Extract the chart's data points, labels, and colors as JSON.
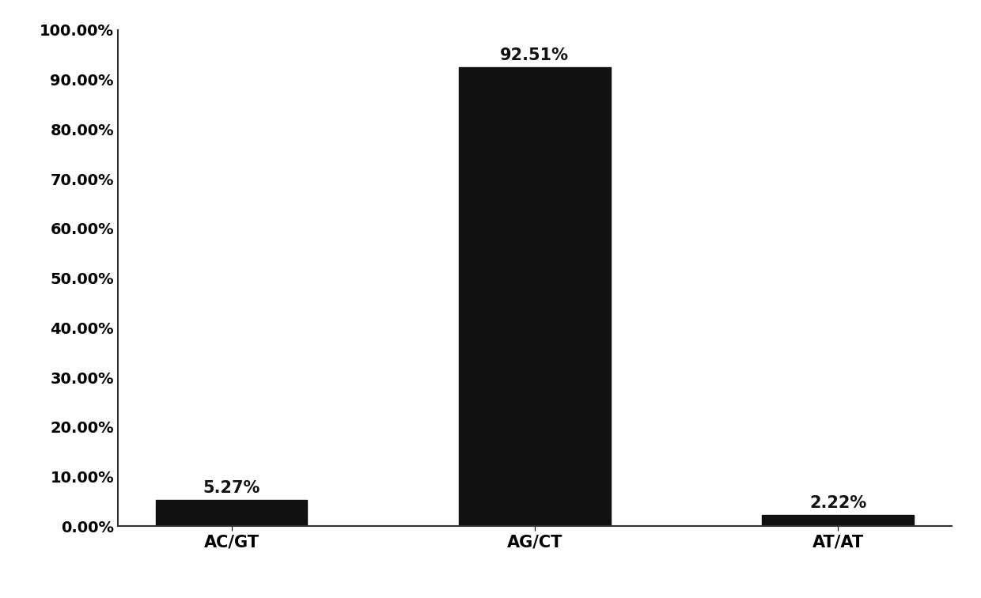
{
  "categories": [
    "AC/GT",
    "AG/CT",
    "AT/AT"
  ],
  "values": [
    5.27,
    92.51,
    2.22
  ],
  "labels": [
    "5.27%",
    "92.51%",
    "2.22%"
  ],
  "bar_color": "#111111",
  "background_color": "#ffffff",
  "ylim": [
    0,
    100
  ],
  "yticks": [
    0,
    10,
    20,
    30,
    40,
    50,
    60,
    70,
    80,
    90,
    100
  ],
  "ytick_labels": [
    "0.00%",
    "10.00%",
    "20.00%",
    "30.00%",
    "40.00%",
    "50.00%",
    "60.00%",
    "70.00%",
    "80.00%",
    "90.00%",
    "100.00%"
  ],
  "bar_width": 0.5,
  "label_fontsize": 15,
  "tick_fontsize": 14,
  "annotation_fontsize": 15,
  "figure_border_color": "#000000",
  "figure_border_linewidth": 3.0
}
